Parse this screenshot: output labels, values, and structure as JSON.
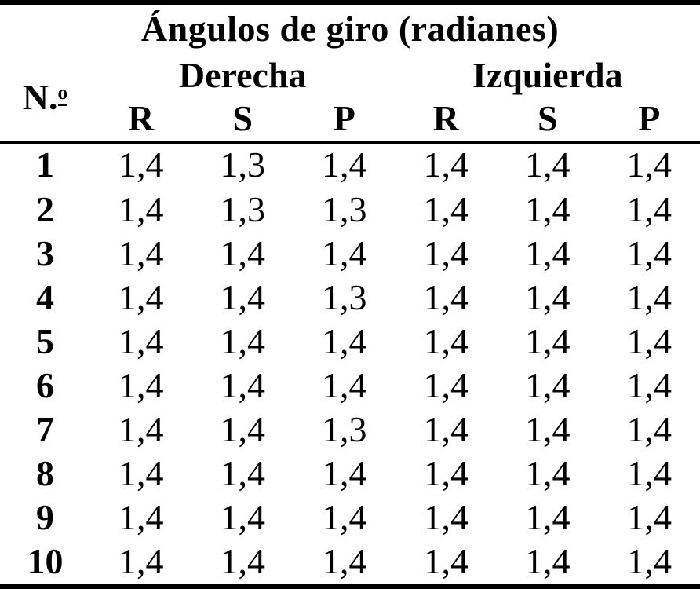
{
  "table": {
    "title": "Ángulos de giro (radianes)",
    "col_no": {
      "prefix": "N.",
      "ordinal": "o"
    },
    "groups": [
      {
        "label": "Derecha"
      },
      {
        "label": "Izquierda"
      }
    ],
    "subheaders": [
      "R",
      "S",
      "P",
      "R",
      "S",
      "P"
    ],
    "rows": [
      {
        "n": "1",
        "values": [
          "1,4",
          "1,3",
          "1,4",
          "1,4",
          "1,4",
          "1,4"
        ]
      },
      {
        "n": "2",
        "values": [
          "1,4",
          "1,3",
          "1,3",
          "1,4",
          "1,4",
          "1,4"
        ]
      },
      {
        "n": "3",
        "values": [
          "1,4",
          "1,4",
          "1,4",
          "1,4",
          "1,4",
          "1,4"
        ]
      },
      {
        "n": "4",
        "values": [
          "1,4",
          "1,4",
          "1,3",
          "1,4",
          "1,4",
          "1,4"
        ]
      },
      {
        "n": "5",
        "values": [
          "1,4",
          "1,4",
          "1,4",
          "1,4",
          "1,4",
          "1,4"
        ]
      },
      {
        "n": "6",
        "values": [
          "1,4",
          "1,4",
          "1,4",
          "1,4",
          "1,4",
          "1,4"
        ]
      },
      {
        "n": "7",
        "values": [
          "1,4",
          "1,4",
          "1,3",
          "1,4",
          "1,4",
          "1,4"
        ]
      },
      {
        "n": "8",
        "values": [
          "1,4",
          "1,4",
          "1,4",
          "1,4",
          "1,4",
          "1,4"
        ]
      },
      {
        "n": "9",
        "values": [
          "1,4",
          "1,4",
          "1,4",
          "1,4",
          "1,4",
          "1,4"
        ]
      },
      {
        "n": "10",
        "values": [
          "1,4",
          "1,4",
          "1,4",
          "1,4",
          "1,4",
          "1,4"
        ]
      }
    ]
  },
  "colors": {
    "text": "#000000",
    "background": "#ffffff",
    "rule": "#000000"
  },
  "chart_data": {
    "type": "table",
    "title": "Ángulos de giro (radianes)",
    "column_groups": [
      "Derecha",
      "Izquierda"
    ],
    "columns": [
      "N.º",
      "Derecha R",
      "Derecha S",
      "Derecha P",
      "Izquierda R",
      "Izquierda S",
      "Izquierda P"
    ],
    "rows": [
      [
        1,
        1.4,
        1.3,
        1.4,
        1.4,
        1.4,
        1.4
      ],
      [
        2,
        1.4,
        1.3,
        1.3,
        1.4,
        1.4,
        1.4
      ],
      [
        3,
        1.4,
        1.4,
        1.4,
        1.4,
        1.4,
        1.4
      ],
      [
        4,
        1.4,
        1.4,
        1.3,
        1.4,
        1.4,
        1.4
      ],
      [
        5,
        1.4,
        1.4,
        1.4,
        1.4,
        1.4,
        1.4
      ],
      [
        6,
        1.4,
        1.4,
        1.4,
        1.4,
        1.4,
        1.4
      ],
      [
        7,
        1.4,
        1.4,
        1.3,
        1.4,
        1.4,
        1.4
      ],
      [
        8,
        1.4,
        1.4,
        1.4,
        1.4,
        1.4,
        1.4
      ],
      [
        9,
        1.4,
        1.4,
        1.4,
        1.4,
        1.4,
        1.4
      ],
      [
        10,
        1.4,
        1.4,
        1.4,
        1.4,
        1.4,
        1.4
      ]
    ],
    "decimal_separator": ",",
    "notes": "Static typeset table; heavy top/bottom rules, thin midrule under header"
  }
}
